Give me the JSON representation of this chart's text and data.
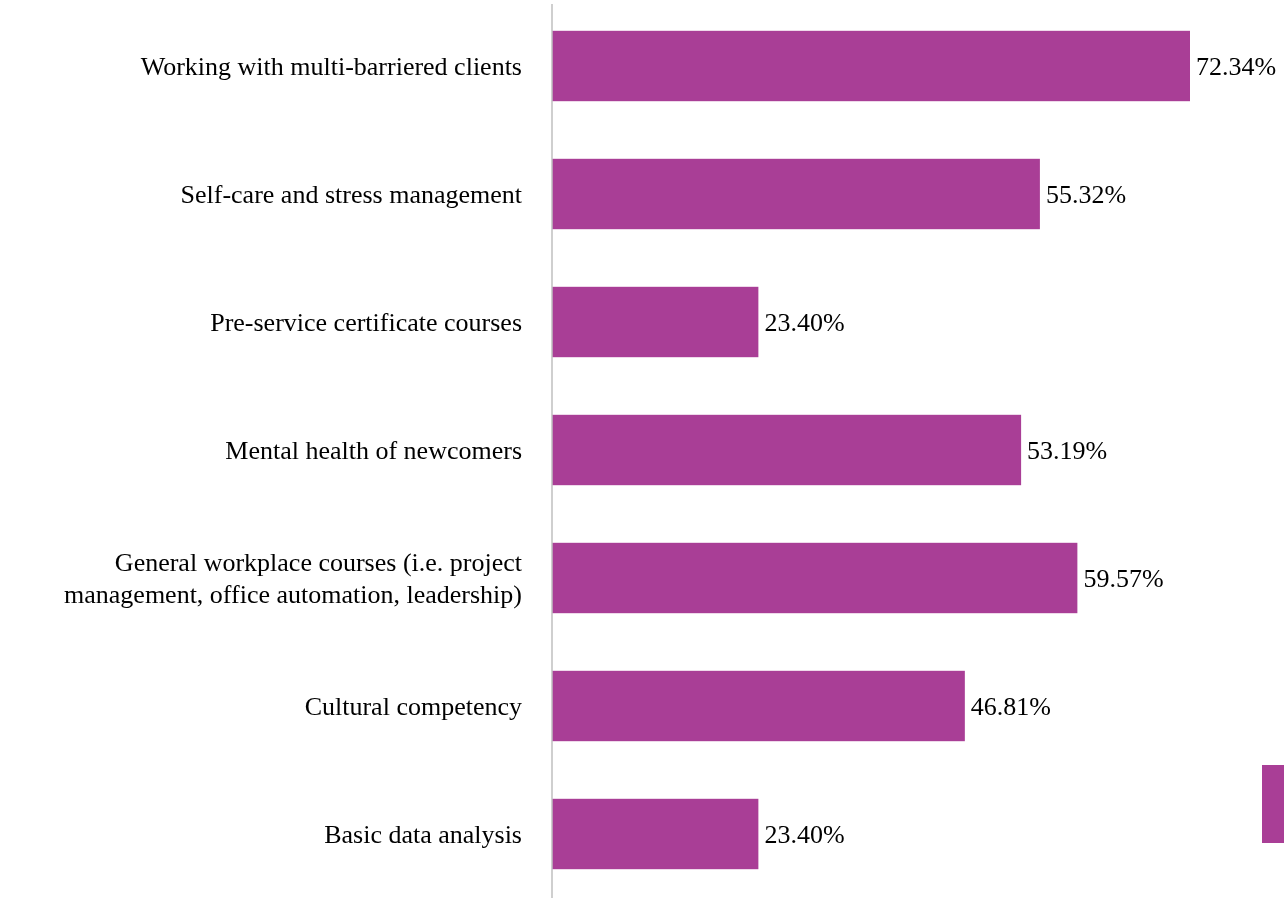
{
  "chart_data": {
    "type": "bar",
    "orientation": "horizontal",
    "categories": [
      "Working with multi-barriered clients",
      "Self-care and stress management",
      "Pre-service certificate courses",
      "Mental health of newcomers",
      "General workplace courses (i.e. project management, office automation, leadership)",
      "Cultural competency",
      "Basic data analysis"
    ],
    "values": [
      72.34,
      55.32,
      23.4,
      53.19,
      59.57,
      46.81,
      23.4
    ],
    "value_labels": [
      "72.34%",
      "55.32%",
      "23.40%",
      "53.19%",
      "59.57%",
      "46.81%",
      "23.40%"
    ],
    "color": "#a93e96"
  }
}
